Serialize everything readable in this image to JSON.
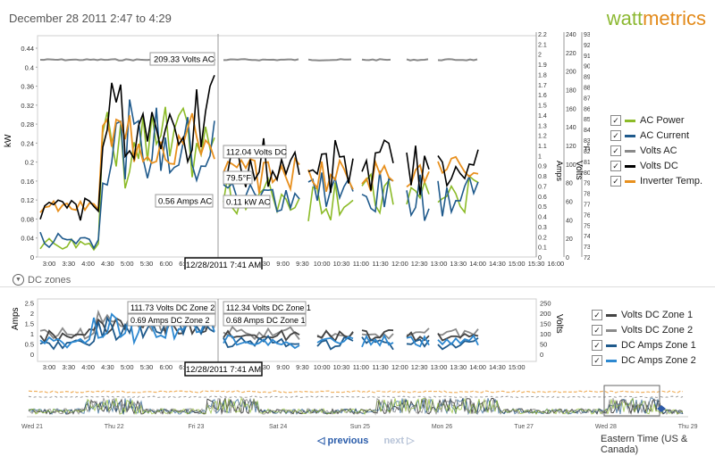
{
  "title": "December 28 2011 2:47 to 4:29",
  "logo": {
    "part1": "watt",
    "part2": "metrics"
  },
  "colors": {
    "ac_power": "#8cbb28",
    "ac_current": "#1f5a8c",
    "volts_ac": "#8a8a8a",
    "volts_dc": "#000000",
    "inverter_temp": "#e8901e",
    "volts_dc_z1": "#444444",
    "volts_dc_z2": "#8a8a8a",
    "dc_amps_z1": "#1f5a8c",
    "dc_amps_z2": "#2d88d0"
  },
  "main_chart": {
    "ylabel": "kW",
    "y_ticks": [
      "0",
      "0.04",
      "0.08",
      "0.12",
      "0.16",
      "0.2",
      "0.24",
      "0.28",
      "0.32",
      "0.36",
      "0.4",
      "0.44"
    ],
    "amps_label": "Amps",
    "amps_ticks": [
      "0",
      "0.1",
      "0.2",
      "0.3",
      "0.4",
      "0.5",
      "0.6",
      "0.7",
      "0.8",
      "0.9",
      "1",
      "1.1",
      "1.2",
      "1.3",
      "1.4",
      "1.5",
      "1.6",
      "1.7",
      "1.8",
      "1.9",
      "2",
      "2.1",
      "2.2"
    ],
    "volts_label": "Volts",
    "volts_ticks": [
      "0",
      "20",
      "40",
      "60",
      "80",
      "100",
      "120",
      "140",
      "160",
      "180",
      "200",
      "220",
      "240"
    ],
    "temp_label": "°F",
    "temp_ticks": [
      "72",
      "73",
      "74",
      "75",
      "76",
      "77",
      "78",
      "79",
      "80",
      "81",
      "82",
      "83",
      "84",
      "85",
      "86",
      "87",
      "88",
      "89",
      "90",
      "91",
      "92",
      "93"
    ],
    "x_ticks": [
      "3:00",
      "3:30",
      "4:00",
      "4:30",
      "5:00",
      "5:30",
      "6:00",
      "6:30",
      "7:00",
      "7:30",
      "8:00",
      "8:30",
      "9:00",
      "9:30",
      "10:00",
      "10:30",
      "11:00",
      "11:30",
      "12:00",
      "12:30",
      "13:00",
      "13:30",
      "14:00",
      "14:30",
      "15:00",
      "15:30",
      "16:00"
    ],
    "tooltips": {
      "volts_ac": "209.33 Volts AC",
      "volts_dc": "112.04 Volts DC",
      "temp": "79.5°F",
      "amps_ac": "0.56 Amps AC",
      "kw_ac": "0.11 kW AC"
    },
    "cursor_time": "12/28/2011 7:41 AM"
  },
  "legend_main": [
    {
      "label": "AC Power",
      "color": "#8cbb28"
    },
    {
      "label": "AC Current",
      "color": "#1f5a8c"
    },
    {
      "label": "Volts AC",
      "color": "#8a8a8a"
    },
    {
      "label": "Volts DC",
      "color": "#000000"
    },
    {
      "label": "Inverter Temp.",
      "color": "#e8901e"
    }
  ],
  "dc_zones_label": "DC zones",
  "dc_chart": {
    "ylabel": "Amps",
    "y_ticks": [
      "0",
      "0.5",
      "1",
      "1.5",
      "2",
      "2.5"
    ],
    "volts_label": "Volts",
    "volts_ticks": [
      "0",
      "50",
      "100",
      "150",
      "200",
      "250"
    ],
    "x_ticks": [
      "3:00",
      "3:30",
      "4:00",
      "4:30",
      "5:00",
      "5:30",
      "6:00",
      "6:30",
      "7:00",
      "7:30",
      "8:00",
      "8:30",
      "9:00",
      "9:30",
      "10:00",
      "10:30",
      "11:00",
      "11:30",
      "12:00",
      "12:30",
      "13:00",
      "13:30",
      "14:00",
      "14:30",
      "15:00"
    ],
    "tooltips": {
      "volts_z2": "111.73 Volts DC Zone 2",
      "amps_z2": "0.69 Amps DC Zone 2",
      "volts_z1": "112.34 Volts DC Zone 1",
      "amps_z1": "0.68 Amps DC Zone 1"
    },
    "cursor_time": "12/28/2011 7:41 AM"
  },
  "legend_dc": [
    {
      "label": "Volts DC Zone 1",
      "color": "#444444"
    },
    {
      "label": "Volts DC Zone 2",
      "color": "#8a8a8a"
    },
    {
      "label": "DC Amps Zone 1",
      "color": "#1f5a8c"
    },
    {
      "label": "DC Amps Zone 2",
      "color": "#2d88d0"
    }
  ],
  "overview": {
    "x_ticks": [
      "Wed 21",
      "Thu 22",
      "Fri 23",
      "Sat 24",
      "Sun 25",
      "Mon 26",
      "Tue 27",
      "Wed 28",
      "Thu 29"
    ]
  },
  "nav": {
    "previous": "previous",
    "next": "next"
  },
  "timezone": "Eastern Time (US & Canada)"
}
